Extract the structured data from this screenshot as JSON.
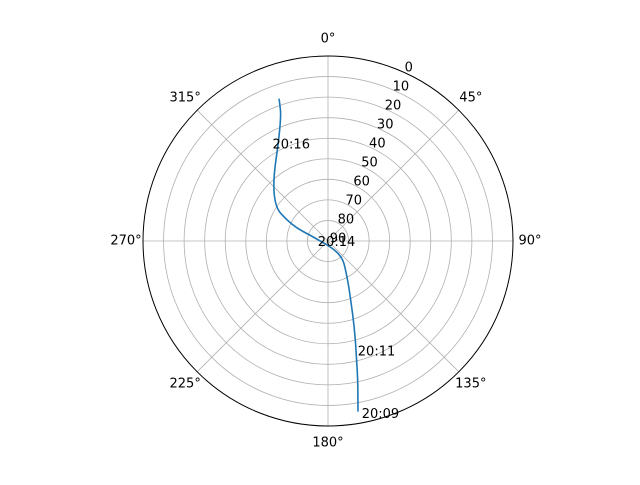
{
  "chart_data": {
    "type": "line",
    "projection": "polar",
    "theta_zero": "N",
    "theta_direction": "clockwise",
    "r_axis": "elevation",
    "rlim": [
      90,
      0
    ],
    "grid": true,
    "angle_ticks": [
      {
        "deg": 0,
        "label": "0°"
      },
      {
        "deg": 45,
        "label": "45°"
      },
      {
        "deg": 90,
        "label": "90°"
      },
      {
        "deg": 135,
        "label": "135°"
      },
      {
        "deg": 180,
        "label": "180°"
      },
      {
        "deg": 225,
        "label": "225°"
      },
      {
        "deg": 270,
        "label": "270°"
      },
      {
        "deg": 315,
        "label": "315°"
      }
    ],
    "radial_ticks": [
      {
        "value": 0,
        "label": "0"
      },
      {
        "value": 10,
        "label": "10"
      },
      {
        "value": 20,
        "label": "20"
      },
      {
        "value": 30,
        "label": "30"
      },
      {
        "value": 40,
        "label": "40"
      },
      {
        "value": 50,
        "label": "50"
      },
      {
        "value": 60,
        "label": "60"
      },
      {
        "value": 70,
        "label": "70"
      },
      {
        "value": 80,
        "label": "80"
      },
      {
        "value": 90,
        "label": "90"
      }
    ],
    "series": [
      {
        "color": "#1f77b4",
        "points": [
          {
            "azimuth": 170,
            "elevation": 6
          },
          {
            "azimuth": 168,
            "elevation": 20
          },
          {
            "azimuth": 166,
            "elevation": 33
          },
          {
            "azimuth": 163,
            "elevation": 46
          },
          {
            "azimuth": 159,
            "elevation": 59
          },
          {
            "azimuth": 151,
            "elevation": 71
          },
          {
            "azimuth": 133,
            "elevation": 81
          },
          {
            "azimuth": 285,
            "elevation": 83
          },
          {
            "azimuth": 293,
            "elevation": 71
          },
          {
            "azimuth": 304,
            "elevation": 56
          },
          {
            "azimuth": 339,
            "elevation": 27
          },
          {
            "azimuth": 341,
            "elevation": 17
          }
        ]
      }
    ],
    "annotations": [
      {
        "text": "20:09",
        "azimuth": 169,
        "elevation": 4
      },
      {
        "text": "20:11",
        "azimuth": 165,
        "elevation": 34
      },
      {
        "text": "20:14",
        "azimuth": 263,
        "elevation": 85
      },
      {
        "text": "20:16",
        "azimuth": 330,
        "elevation": 36
      }
    ]
  }
}
